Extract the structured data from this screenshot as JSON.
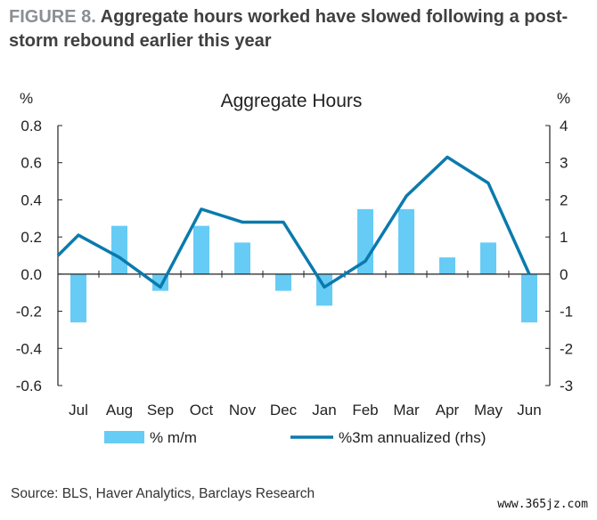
{
  "figure": {
    "label": "FIGURE 8.",
    "title": "Aggregate hours worked have slowed following a post-storm rebound earlier this year"
  },
  "source": "Source: BLS, Haver Analytics, Barclays Research",
  "watermark": "www.365jz.com",
  "colors": {
    "bar": "#66ccf5",
    "line": "#0a7aad",
    "axis": "#222222",
    "text": "#333333"
  },
  "chart_data": {
    "type": "bar+line",
    "title": "Aggregate Hours",
    "categories": [
      "Jul",
      "Aug",
      "Sep",
      "Oct",
      "Nov",
      "Dec",
      "Jan",
      "Feb",
      "Mar",
      "Apr",
      "May",
      "Jun"
    ],
    "series": [
      {
        "name": "% m/m",
        "type": "bar",
        "axis": "left",
        "values": [
          -0.26,
          0.26,
          -0.09,
          0.26,
          0.17,
          -0.09,
          -0.17,
          0.35,
          0.35,
          0.09,
          0.17,
          -0.26
        ]
      },
      {
        "name": "%3m annualized (rhs)",
        "type": "line",
        "axis": "right",
        "values": [
          1.05,
          0.45,
          -0.35,
          1.75,
          1.4,
          1.4,
          -0.35,
          0.35,
          2.1,
          3.15,
          2.45,
          0.0
        ]
      }
    ],
    "left_axis": {
      "label": "%",
      "ylim": [
        -0.6,
        0.8
      ],
      "ticks": [
        "0.8",
        "0.6",
        "0.4",
        "0.2",
        "0.0",
        "-0.2",
        "-0.4",
        "-0.6"
      ]
    },
    "right_axis": {
      "label": "%",
      "ylim": [
        -3,
        4
      ],
      "ticks": [
        "4",
        "3",
        "2",
        "1",
        "0",
        "-1",
        "-2",
        "-3"
      ]
    },
    "line_start_value": 0.5,
    "grid": false,
    "legend_position": "bottom"
  }
}
